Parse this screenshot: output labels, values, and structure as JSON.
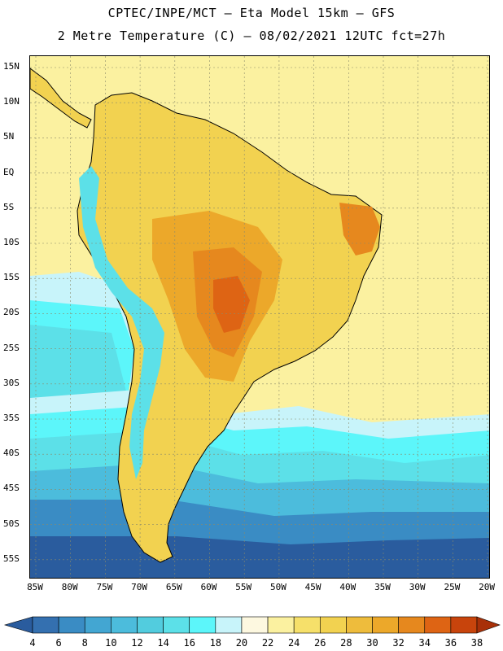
{
  "title_line1": "CPTEC/INPE/MCT –  Eta Model 15km – GFS",
  "title_line2": "2 Metre Temperature (C) – 08/02/2021 12UTC fct=27h",
  "lat_labels": [
    "15N",
    "10N",
    "5N",
    "EQ",
    "5S",
    "10S",
    "15S",
    "20S",
    "25S",
    "30S",
    "35S",
    "40S",
    "45S",
    "50S",
    "55S"
  ],
  "lon_labels": [
    "85W",
    "80W",
    "75W",
    "70W",
    "65W",
    "60W",
    "55W",
    "50W",
    "45W",
    "40W",
    "35W",
    "30W",
    "25W",
    "20W"
  ],
  "colorbar": {
    "labels": [
      "4",
      "6",
      "8",
      "10",
      "12",
      "14",
      "16",
      "18",
      "20",
      "22",
      "24",
      "26",
      "28",
      "30",
      "32",
      "34",
      "36",
      "38"
    ],
    "colors": [
      "#2a5c9e",
      "#3470b0",
      "#3a8cc4",
      "#43a6d2",
      "#4cbcdc",
      "#52ccde",
      "#5ce0e8",
      "#5cf6fa",
      "#c8f4fa",
      "#fdf8e0",
      "#fbf1a0",
      "#f6e06a",
      "#f2d250",
      "#eebc3c",
      "#eca82a",
      "#e6881e",
      "#de6414",
      "#c8440c",
      "#a83008"
    ]
  },
  "map_colors": {
    "deep_ocean": "#2a5c9e",
    "cold_ocean": "#3a8cc4",
    "mid_ocean": "#4cbcdc",
    "cool_ocean": "#5ce0e8",
    "cyan": "#5cf6fa",
    "pale": "#c8f4fa",
    "warm_ocean": "#fbf1a0",
    "land": "#f2d250",
    "hot": "#eca82a",
    "hotter": "#e6881e",
    "hottest": "#de6414"
  }
}
